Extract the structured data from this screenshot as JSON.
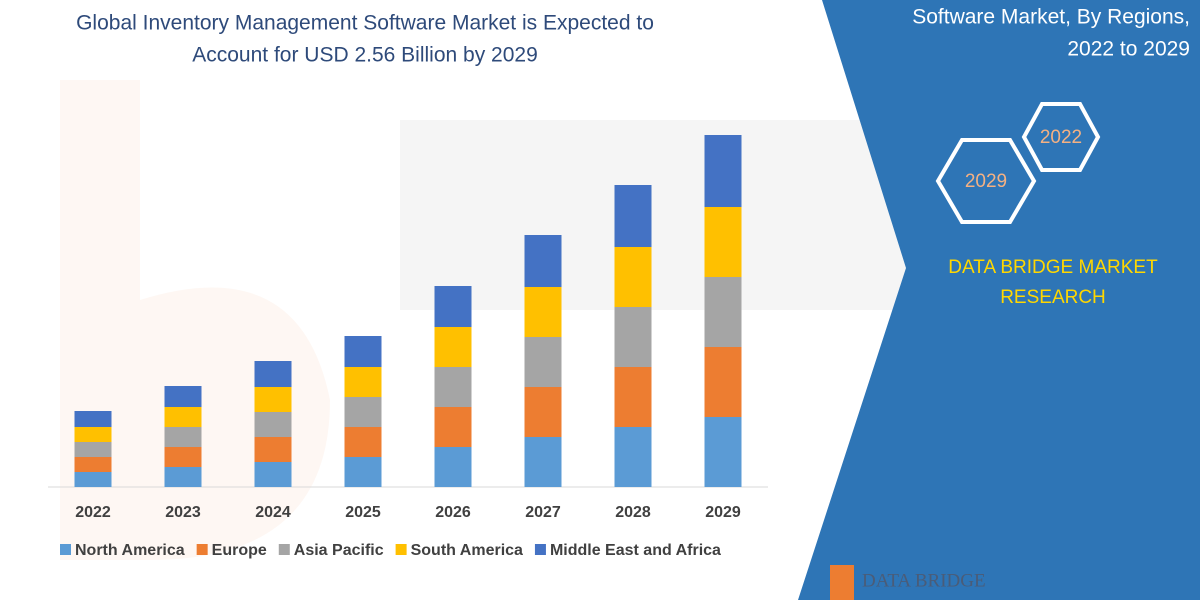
{
  "chart_data": {
    "type": "stacked_bar",
    "title": [
      "Global Inventory Management Software Market is Expected to",
      "Account for USD 2.56 Billion by 2029"
    ],
    "categories": [
      "2022",
      "2023",
      "2024",
      "2025",
      "2026",
      "2027",
      "2028",
      "2029"
    ],
    "series": [
      {
        "name": "North America",
        "color": "#5b9bd5",
        "values": [
          15,
          20,
          25,
          30,
          40,
          50,
          60,
          70
        ]
      },
      {
        "name": "Europe",
        "color": "#ed7d31",
        "values": [
          15,
          20,
          25,
          30,
          40,
          50,
          60,
          70
        ]
      },
      {
        "name": "Asia Pacific",
        "color": "#a5a5a5",
        "values": [
          15,
          20,
          25,
          30,
          40,
          50,
          60,
          70
        ]
      },
      {
        "name": "South America",
        "color": "#ffc000",
        "values": [
          15,
          20,
          25,
          30,
          40,
          50,
          60,
          70
        ]
      },
      {
        "name": "Middle East and Africa",
        "color": "#4472c4",
        "values": [
          16,
          21,
          26,
          31,
          41,
          52,
          62,
          72
        ]
      }
    ]
  },
  "panel": {
    "title": [
      "Software Market, By Regions,",
      "2022 to 2029"
    ],
    "hexagons": [
      "2022",
      "2029"
    ],
    "brand": [
      "DATA BRIDGE MARKET",
      "RESEARCH"
    ],
    "logo": "DATA BRIDGE"
  }
}
